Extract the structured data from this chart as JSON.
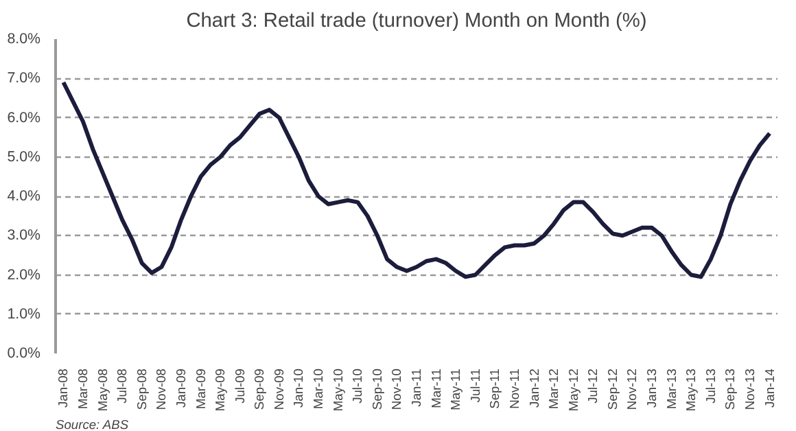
{
  "chart_data": {
    "type": "line",
    "title": "Chart 3: Retail trade (turnover) Month on Month (%)",
    "categories": [
      "Jan-08",
      null,
      "Mar-08",
      null,
      "May-08",
      null,
      "Jul-08",
      null,
      "Sep-08",
      null,
      "Nov-08",
      null,
      "Jan-09",
      null,
      "Mar-09",
      null,
      "May-09",
      null,
      "Jul-09",
      null,
      "Sep-09",
      null,
      "Nov-09",
      null,
      "Jan-10",
      null,
      "Mar-10",
      null,
      "May-10",
      null,
      "Jul-10",
      null,
      "Sep-10",
      null,
      "Nov-10",
      null,
      "Jan-11",
      null,
      "Mar-11",
      null,
      "May-11",
      null,
      "Jul-11",
      null,
      "Sep-11",
      null,
      "Nov-11",
      null,
      "Jan-12",
      null,
      "Mar-12",
      null,
      "May-12",
      null,
      "Jul-12",
      null,
      "Sep-12",
      null,
      "Nov-12",
      null,
      "Jan-13",
      null,
      "Mar-13",
      null,
      "May-13",
      null,
      "Jul-13",
      null,
      "Sep-13",
      null,
      "Nov-13",
      null,
      "Jan-14"
    ],
    "series": [
      {
        "color": "#1c1c3c",
        "values": [
          6.9,
          6.4,
          5.9,
          5.2,
          4.6,
          4.0,
          3.4,
          2.9,
          2.3,
          2.05,
          2.2,
          2.7,
          3.4,
          4.0,
          4.5,
          4.8,
          5.0,
          5.3,
          5.5,
          5.8,
          6.1,
          6.2,
          6.0,
          5.5,
          5.0,
          4.4,
          4.0,
          3.8,
          3.85,
          3.9,
          3.85,
          3.5,
          3.0,
          2.4,
          2.2,
          2.1,
          2.2,
          2.35,
          2.4,
          2.3,
          2.1,
          1.95,
          2.0,
          2.25,
          2.5,
          2.7,
          2.75,
          2.75,
          2.8,
          3.0,
          3.3,
          3.65,
          3.85,
          3.85,
          3.6,
          3.3,
          3.05,
          3.0,
          3.1,
          3.2,
          3.2,
          3.0,
          2.6,
          2.25,
          2.0,
          1.95,
          2.4,
          3.0,
          3.8,
          4.4,
          4.9,
          5.3,
          5.6
        ]
      }
    ],
    "ylim": [
      0,
      8
    ],
    "yticks": [
      {
        "value": 0,
        "label": "0.0%"
      },
      {
        "value": 1,
        "label": "1.0%"
      },
      {
        "value": 2,
        "label": "2.0%"
      },
      {
        "value": 3,
        "label": "3.0%"
      },
      {
        "value": 4,
        "label": "4.0%"
      },
      {
        "value": 5,
        "label": "5.0%"
      },
      {
        "value": 6,
        "label": "6.0%"
      },
      {
        "value": 7,
        "label": "7.0%"
      },
      {
        "value": 8,
        "label": "8.0%"
      }
    ],
    "grid": "y",
    "line_style": "solid",
    "marker": "none",
    "annotations": [
      "Source: ABS"
    ]
  }
}
